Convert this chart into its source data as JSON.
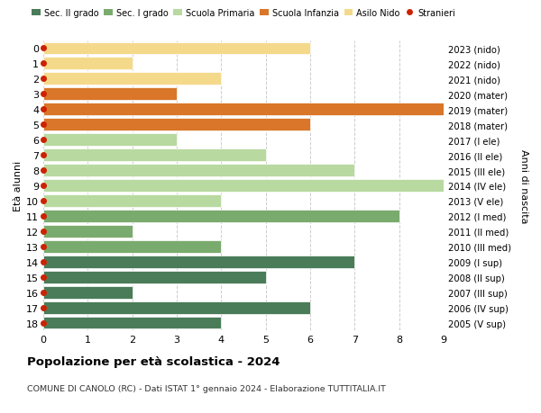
{
  "ages": [
    18,
    17,
    16,
    15,
    14,
    13,
    12,
    11,
    10,
    9,
    8,
    7,
    6,
    5,
    4,
    3,
    2,
    1,
    0
  ],
  "right_labels": [
    "2005 (V sup)",
    "2006 (IV sup)",
    "2007 (III sup)",
    "2008 (II sup)",
    "2009 (I sup)",
    "2010 (III med)",
    "2011 (II med)",
    "2012 (I med)",
    "2013 (V ele)",
    "2014 (IV ele)",
    "2015 (III ele)",
    "2016 (II ele)",
    "2017 (I ele)",
    "2018 (mater)",
    "2019 (mater)",
    "2020 (mater)",
    "2021 (nido)",
    "2022 (nido)",
    "2023 (nido)"
  ],
  "bar_values": [
    4,
    6,
    2,
    5,
    7,
    4,
    2,
    8,
    4,
    9,
    7,
    5,
    3,
    6,
    9,
    3,
    4,
    2,
    6
  ],
  "bar_colors": [
    "#4a7c59",
    "#4a7c59",
    "#4a7c59",
    "#4a7c59",
    "#4a7c59",
    "#7aab6e",
    "#7aab6e",
    "#7aab6e",
    "#b8d9a0",
    "#b8d9a0",
    "#b8d9a0",
    "#b8d9a0",
    "#b8d9a0",
    "#d9762a",
    "#d9762a",
    "#d9762a",
    "#f5d98b",
    "#f5d98b",
    "#f5d98b"
  ],
  "legend_labels": [
    "Sec. II grado",
    "Sec. I grado",
    "Scuola Primaria",
    "Scuola Infanzia",
    "Asilo Nido",
    "Stranieri"
  ],
  "legend_colors": [
    "#4a7c59",
    "#7aab6e",
    "#b8d9a0",
    "#d9762a",
    "#f5d98b",
    "#cc2200"
  ],
  "ylabel": "Età alunni",
  "right_ylabel": "Anni di nascita",
  "title": "Popolazione per età scolastica - 2024",
  "subtitle": "COMUNE DI CANOLO (RC) - Dati ISTAT 1° gennaio 2024 - Elaborazione TUTTITALIA.IT",
  "xlim": [
    0,
    9
  ],
  "xticks": [
    0,
    1,
    2,
    3,
    4,
    5,
    6,
    7,
    8,
    9
  ],
  "bg_color": "#ffffff",
  "grid_color": "#cccccc"
}
